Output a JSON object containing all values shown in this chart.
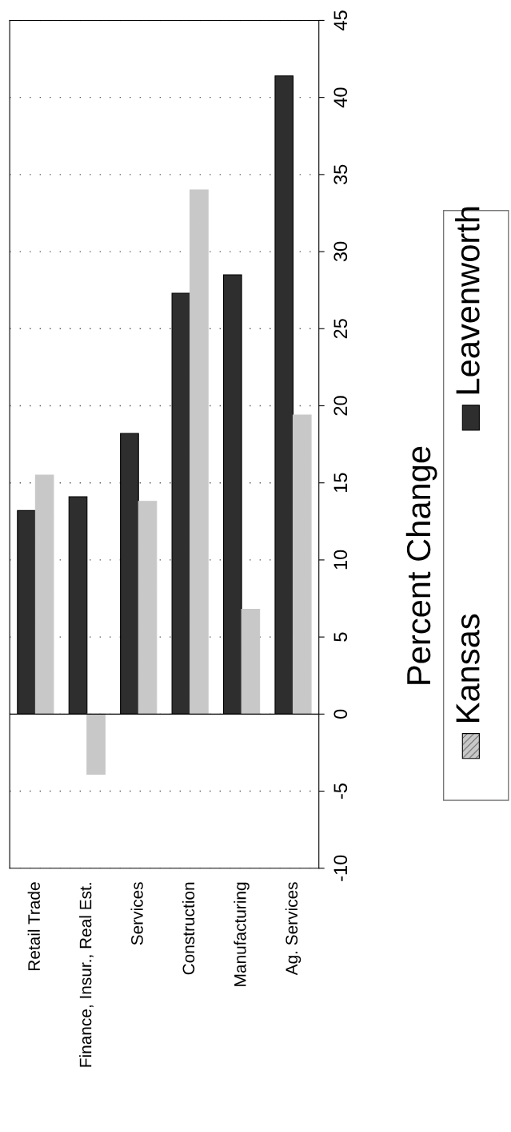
{
  "chart_data": {
    "type": "bar",
    "ylabel": "Percent Change",
    "categories": [
      "Retail Trade",
      "Finance, Insur., Real Est.",
      "Services",
      "Construction",
      "Manufacturing",
      "Ag. Services"
    ],
    "series": [
      {
        "name": "Leavenworth",
        "color": "#2e2e2e",
        "values": [
          13.2,
          14.1,
          18.2,
          27.3,
          28.5,
          41.4
        ]
      },
      {
        "name": "Kansas",
        "color": "#c8c8c8",
        "values": [
          15.5,
          -3.9,
          13.8,
          34.0,
          6.8,
          19.4
        ]
      }
    ],
    "ylim": [
      -10,
      45
    ],
    "yticks": [
      -10,
      -5,
      0,
      5,
      10,
      15,
      20,
      25,
      30,
      35,
      40,
      45
    ],
    "grid": "y",
    "legend": "right"
  }
}
